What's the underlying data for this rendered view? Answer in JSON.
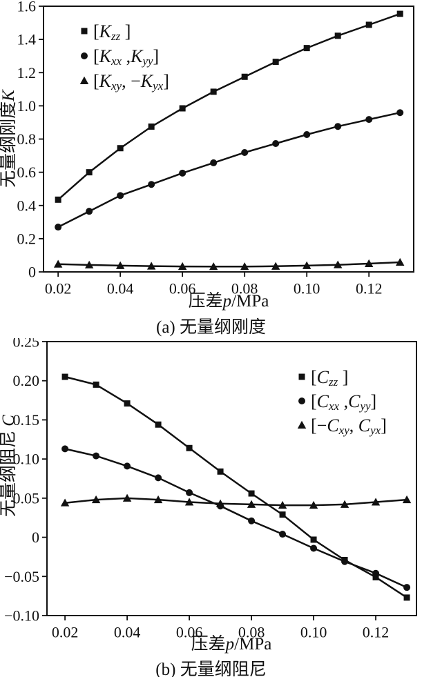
{
  "page": {
    "background": "#ffffff",
    "ink": "#111111"
  },
  "chart_data": [
    {
      "id": "a",
      "type": "line",
      "title": "",
      "caption": "(a) 无量纲刚度",
      "xlabel_text": "压差 p/MPa",
      "ylabel_text": "无量纲刚度 K",
      "xlabel_runs": [
        {
          "text": "压差",
          "style": "n"
        },
        {
          "text": "p",
          "style": "i"
        },
        {
          "text": "/MPa",
          "style": "n"
        }
      ],
      "ylabel_runs": [
        {
          "text": "无量纲刚度",
          "style": "n"
        },
        {
          "text": "K",
          "style": "i"
        }
      ],
      "grid": false,
      "legend_position": "upper-left",
      "xlim": [
        0.0153,
        0.1344
      ],
      "ylim": [
        0,
        1.6
      ],
      "xticks": [
        0.02,
        0.04,
        0.06,
        0.08,
        0.1,
        0.12
      ],
      "xtick_labels": [
        "0.02",
        "0.04",
        "0.06",
        "0.08",
        "0.10",
        "0.12"
      ],
      "yticks": [
        0,
        0.2,
        0.4,
        0.6,
        0.8,
        1.0,
        1.2,
        1.4,
        1.6
      ],
      "ytick_labels": [
        "0",
        "0.2",
        "0.4",
        "0.6",
        "0.8",
        "1.0",
        "1.2",
        "1.4",
        "1.6"
      ],
      "x": [
        0.02,
        0.03,
        0.04,
        0.05,
        0.06,
        0.07,
        0.08,
        0.09,
        0.1,
        0.11,
        0.12,
        0.13
      ],
      "series": [
        {
          "name": "[Kzz]",
          "marker": "square",
          "values": [
            0.435,
            0.6,
            0.745,
            0.875,
            0.985,
            1.085,
            1.175,
            1.265,
            1.348,
            1.422,
            1.488,
            1.554
          ],
          "legend_runs": [
            {
              "text": "[",
              "style": "n"
            },
            {
              "text": "K",
              "style": "i"
            },
            {
              "text": "zz",
              "style": "is"
            },
            {
              "text": " ]",
              "style": "n"
            }
          ]
        },
        {
          "name": "[Kxx, Kyy]",
          "marker": "circle",
          "values": [
            0.27,
            0.365,
            0.46,
            0.527,
            0.595,
            0.657,
            0.719,
            0.773,
            0.827,
            0.876,
            0.918,
            0.959
          ],
          "legend_runs": [
            {
              "text": "[",
              "style": "n"
            },
            {
              "text": "K",
              "style": "i"
            },
            {
              "text": "xx",
              "style": "is"
            },
            {
              "text": " ,",
              "style": "n"
            },
            {
              "text": "K",
              "style": "i"
            },
            {
              "text": "yy",
              "style": "is"
            },
            {
              "text": "]",
              "style": "n"
            }
          ]
        },
        {
          "name": "[Kxy, -Kyx]",
          "marker": "triangle",
          "values": [
            0.047,
            0.042,
            0.038,
            0.035,
            0.033,
            0.032,
            0.032,
            0.034,
            0.038,
            0.043,
            0.05,
            0.058
          ],
          "legend_runs": [
            {
              "text": "[",
              "style": "n"
            },
            {
              "text": "K",
              "style": "i"
            },
            {
              "text": "xy",
              "style": "is"
            },
            {
              "text": ", −",
              "style": "n"
            },
            {
              "text": "K",
              "style": "i"
            },
            {
              "text": "yx",
              "style": "is"
            },
            {
              "text": "]",
              "style": "n"
            }
          ]
        }
      ]
    },
    {
      "id": "b",
      "type": "line",
      "title": "",
      "caption": "(b) 无量纲阻尼",
      "xlabel_text": "压差 p/MPa",
      "ylabel_text": "无量纲阻尼 C",
      "xlabel_runs": [
        {
          "text": "压差",
          "style": "n"
        },
        {
          "text": "p",
          "style": "i"
        },
        {
          "text": "/MPa",
          "style": "n"
        }
      ],
      "ylabel_runs": [
        {
          "text": "无量纲阻尼 ",
          "style": "n"
        },
        {
          "text": "C",
          "style": "i"
        }
      ],
      "grid": false,
      "legend_position": "upper-right",
      "xlim": [
        0.0142,
        0.1331
      ],
      "ylim": [
        -0.1,
        0.25
      ],
      "xticks": [
        0.02,
        0.04,
        0.06,
        0.08,
        0.1,
        0.12
      ],
      "xtick_labels": [
        "0.02",
        "0.04",
        "0.06",
        "0.08",
        "0.10",
        "0.12"
      ],
      "yticks": [
        -0.1,
        -0.05,
        0,
        0.05,
        0.1,
        0.15,
        0.2,
        0.25
      ],
      "ytick_labels": [
        "−0.10",
        "−0.05",
        "0",
        "0.05",
        "0.10",
        "0.15",
        "0.20",
        "0.25"
      ],
      "x": [
        0.02,
        0.03,
        0.04,
        0.05,
        0.06,
        0.07,
        0.08,
        0.09,
        0.1,
        0.11,
        0.12,
        0.13
      ],
      "series": [
        {
          "name": "[Czz]",
          "marker": "square",
          "values": [
            0.205,
            0.195,
            0.171,
            0.144,
            0.114,
            0.084,
            0.056,
            0.029,
            -0.003,
            -0.029,
            -0.051,
            -0.077
          ],
          "legend_runs": [
            {
              "text": "[",
              "style": "n"
            },
            {
              "text": "C",
              "style": "i"
            },
            {
              "text": "zz",
              "style": "is"
            },
            {
              "text": " ]",
              "style": "n"
            }
          ]
        },
        {
          "name": "[Cxx, Cyy]",
          "marker": "circle",
          "values": [
            0.113,
            0.104,
            0.091,
            0.076,
            0.057,
            0.04,
            0.021,
            0.004,
            -0.014,
            -0.031,
            -0.046,
            -0.064
          ],
          "legend_runs": [
            {
              "text": "[",
              "style": "n"
            },
            {
              "text": "C",
              "style": "i"
            },
            {
              "text": "xx",
              "style": "is"
            },
            {
              "text": " ,",
              "style": "n"
            },
            {
              "text": "C",
              "style": "i"
            },
            {
              "text": "yy",
              "style": "is"
            },
            {
              "text": "]",
              "style": "n"
            }
          ]
        },
        {
          "name": "[-Cxy, Cyx]",
          "marker": "triangle",
          "values": [
            0.044,
            0.048,
            0.05,
            0.048,
            0.045,
            0.043,
            0.042,
            0.041,
            0.041,
            0.042,
            0.045,
            0.048
          ],
          "legend_runs": [
            {
              "text": "[−",
              "style": "n"
            },
            {
              "text": "C",
              "style": "i"
            },
            {
              "text": "xy",
              "style": "is"
            },
            {
              "text": ", ",
              "style": "n"
            },
            {
              "text": "C",
              "style": "i"
            },
            {
              "text": "yx",
              "style": "is"
            },
            {
              "text": "]",
              "style": "n"
            }
          ]
        }
      ]
    }
  ]
}
